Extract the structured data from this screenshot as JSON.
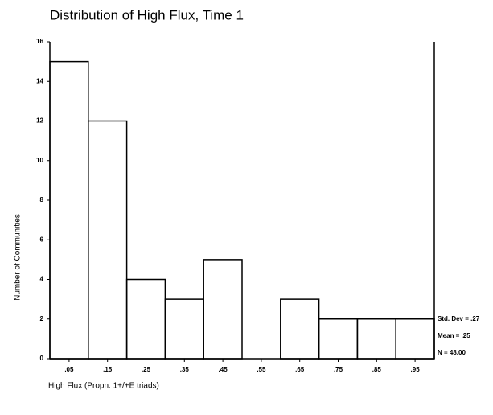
{
  "chart_data": {
    "type": "histogram",
    "title": "Distribution of High Flux, Time 1",
    "xlabel": "High Flux (Propn. 1+/+E triads)",
    "ylabel": "Number of Communities",
    "bins": [
      0,
      0.1,
      0.2,
      0.3,
      0.4,
      0.5,
      0.6,
      0.7,
      0.8,
      0.9,
      1.0
    ],
    "values": [
      15,
      12,
      4,
      3,
      5,
      0,
      3,
      2,
      2,
      2
    ],
    "color": "#000000",
    "xlim": [
      0,
      1.0
    ],
    "xticks": [
      {
        "value": 0.05,
        "label": ".05"
      },
      {
        "value": 0.15,
        "label": ".15"
      },
      {
        "value": 0.25,
        "label": ".25"
      },
      {
        "value": 0.35,
        "label": ".35"
      },
      {
        "value": 0.45,
        "label": ".45"
      },
      {
        "value": 0.55,
        "label": ".55"
      },
      {
        "value": 0.65,
        "label": ".65"
      },
      {
        "value": 0.75,
        "label": ".75"
      },
      {
        "value": 0.85,
        "label": ".85"
      },
      {
        "value": 0.95,
        "label": ".95"
      }
    ],
    "ylim": [
      0,
      16
    ],
    "yticks": [
      0,
      2,
      4,
      6,
      8,
      10,
      12,
      14,
      16
    ],
    "annotations": [
      "Std. Dev = .27",
      "Mean = .25",
      "N = 48.00"
    ]
  }
}
